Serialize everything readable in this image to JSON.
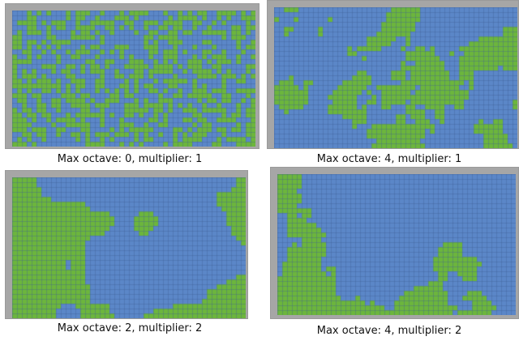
{
  "colors": {
    "water": "#5b87c8",
    "land": "#6cb63c",
    "grid_line": "#3e5f96",
    "frame": "#a6a6a6"
  },
  "panels": [
    {
      "id": "tl",
      "caption": "Max octave: 0, multiplier: 1",
      "max_octave": 0,
      "multiplier": 1,
      "land_fraction": 0.48
    },
    {
      "id": "tr",
      "caption": "Max octave: 4, multiplier: 1",
      "max_octave": 4,
      "multiplier": 1,
      "land_fraction": 0.36
    },
    {
      "id": "bl",
      "caption": "Max octave: 2, multiplier: 2",
      "max_octave": 2,
      "multiplier": 2,
      "land_fraction": 0.42
    },
    {
      "id": "br",
      "caption": "Max octave: 4, multiplier: 2",
      "max_octave": 4,
      "multiplier": 2,
      "land_fraction": 0.28
    }
  ]
}
